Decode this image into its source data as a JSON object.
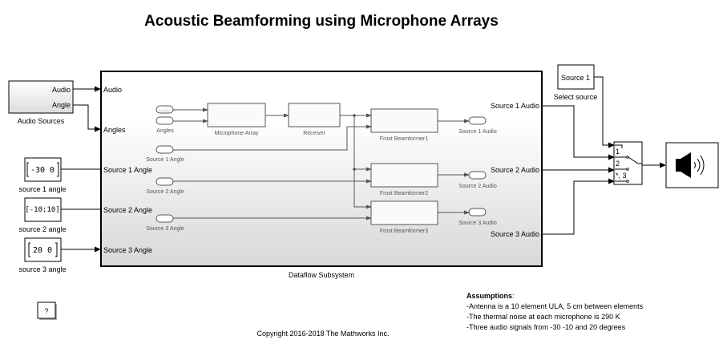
{
  "title": "Acoustic Beamforming using Microphone Arrays",
  "audio_sources": {
    "caption": "Audio Sources",
    "ports": [
      "Audio",
      "Angle"
    ]
  },
  "constants": [
    {
      "value": "-30 0",
      "caption": "source 1 angle"
    },
    {
      "value": "[-10;10]",
      "caption": "source 2 angle"
    },
    {
      "value": "20 0",
      "caption": "source 3 angle"
    }
  ],
  "subsystem": {
    "caption": "Dataflow Subsystem",
    "inputs": [
      "Audio",
      "Angles",
      "Source 1 Angle",
      "Source 2 Angle",
      "Source 3 Angle"
    ],
    "outputs": [
      "Source 1 Audio",
      "Source 2 Audio",
      "Source 3 Audio"
    ],
    "inner": {
      "from_tags": [
        "Audio",
        "Angles",
        "Source 1 Angle",
        "Source 2 Angle",
        "Source 3 Angle"
      ],
      "blocks": [
        "Microphone Array",
        "Receiver",
        "Frost Beamformer1",
        "Frost Beamformer2",
        "Frost Beamformer3"
      ],
      "goto_tags": [
        "Source 1 Audio",
        "Source 2 Audio",
        "Source 3 Audio"
      ]
    }
  },
  "select_source": {
    "value": "Source 1",
    "caption": "Select source"
  },
  "switch": {
    "ports": [
      "1",
      "2",
      "*, 3"
    ]
  },
  "speaker_icon": "speaker-icon",
  "help": "?",
  "assumptions": {
    "heading": "Assumptions",
    "lines": [
      "-Antenna is a 10 element ULA, 5 cm between elements",
      "-The thermal noise at each microphone is 290 K",
      "-Three audio signals from -30 -10 and 20 degrees"
    ]
  },
  "copyright": "Copyright 2016-2018 The Mathworks Inc."
}
